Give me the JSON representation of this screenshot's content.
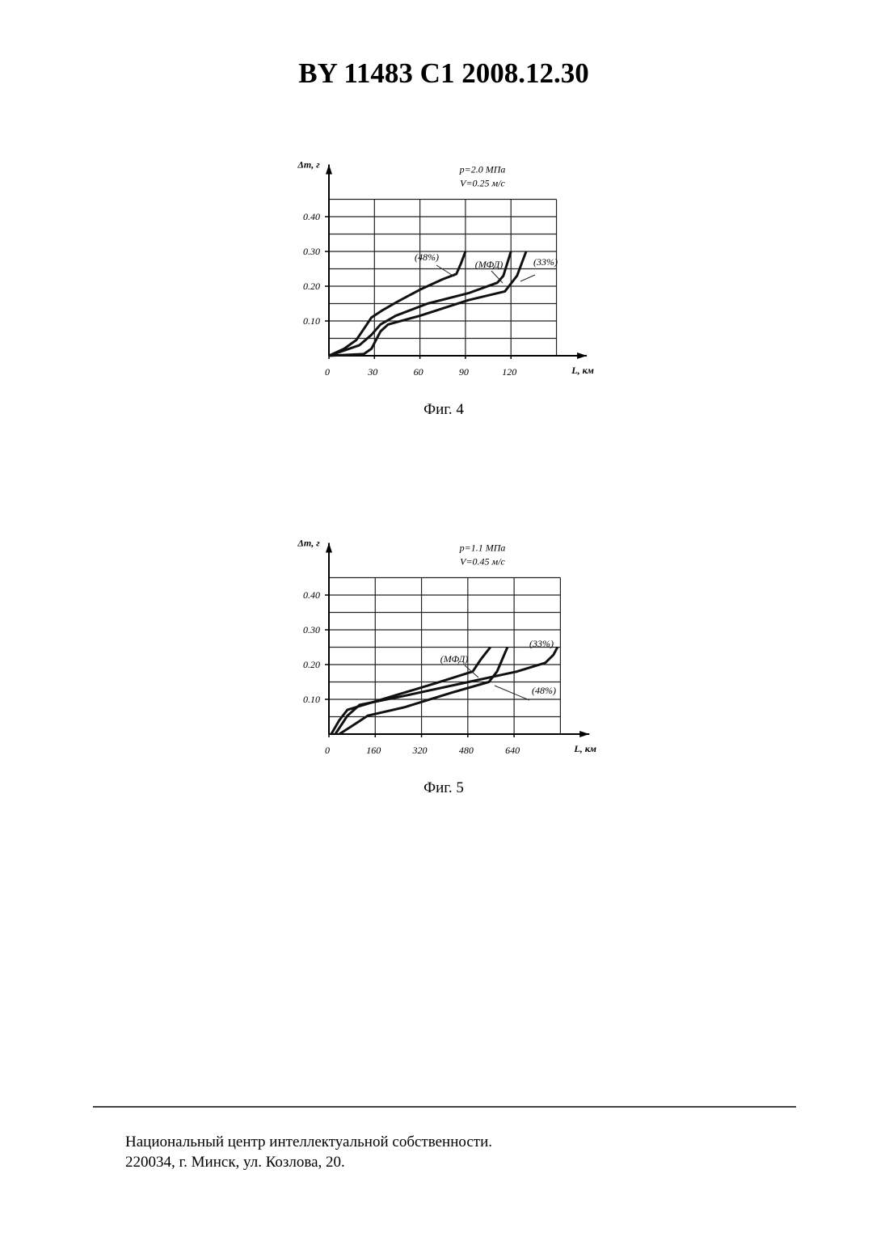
{
  "header": "BY 11483 C1 2008.12.30",
  "chart_data": [
    {
      "type": "line",
      "caption": "Фиг. 4",
      "ylabel": "Δm, г",
      "xlabel": "L, км",
      "annotations": [
        "p=2.0 МПа",
        "V=0.25 м/с"
      ],
      "xlim": [
        0,
        170
      ],
      "ylim": [
        0,
        0.55
      ],
      "xticks": [
        0,
        30,
        60,
        90,
        120
      ],
      "yticks": [
        {
          "value": 0.1,
          "label": "0.10"
        },
        {
          "value": 0.2,
          "label": "0.20"
        },
        {
          "value": 0.3,
          "label": "0.30"
        },
        {
          "value": 0.4,
          "label": "0.40"
        }
      ],
      "xgrid": [
        30,
        60,
        90,
        120,
        150
      ],
      "ygrid": [
        0.05,
        0.1,
        0.15,
        0.2,
        0.25,
        0.3,
        0.35,
        0.4,
        0.45
      ],
      "grid": true,
      "color": "#111111",
      "series": [
        {
          "name": "(48%)",
          "x": [
            0,
            10,
            18,
            25,
            28,
            35,
            45,
            60,
            75,
            84,
            87,
            90
          ],
          "values": [
            0,
            0.02,
            0.045,
            0.09,
            0.11,
            0.13,
            0.155,
            0.19,
            0.22,
            0.235,
            0.265,
            0.3
          ]
        },
        {
          "name": "(МФД)",
          "x": [
            0,
            20,
            28,
            34,
            44,
            65,
            92,
            111,
            115,
            120
          ],
          "values": [
            0,
            0.03,
            0.06,
            0.09,
            0.115,
            0.15,
            0.18,
            0.21,
            0.23,
            0.3
          ]
        },
        {
          "name": "(33%)",
          "x": [
            0,
            23,
            28,
            34,
            39,
            60,
            92,
            116,
            124,
            130
          ],
          "values": [
            0,
            0.005,
            0.02,
            0.07,
            0.09,
            0.115,
            0.16,
            0.185,
            0.23,
            0.3
          ]
        }
      ]
    },
    {
      "type": "line",
      "caption": "Фиг. 5",
      "ylabel": "Δm, г",
      "xlabel": "L, км",
      "annotations": [
        "p=1.1 МПа",
        "V=0.45 м/с"
      ],
      "xlim": [
        0,
        900
      ],
      "ylim": [
        0,
        0.55
      ],
      "xticks": [
        0,
        160,
        320,
        480,
        640
      ],
      "yticks": [
        {
          "value": 0.1,
          "label": "0.10"
        },
        {
          "value": 0.2,
          "label": "0.20"
        },
        {
          "value": 0.3,
          "label": "0.30"
        },
        {
          "value": 0.4,
          "label": "0.40"
        }
      ],
      "xgrid": [
        160,
        320,
        480,
        640,
        800
      ],
      "ygrid": [
        0.05,
        0.1,
        0.15,
        0.2,
        0.25,
        0.3,
        0.35,
        0.4,
        0.45
      ],
      "grid": true,
      "color": "#111111",
      "series": [
        {
          "name": "(МФД)",
          "x": [
            8,
            36,
            64,
            92,
            204,
            371,
            497,
            525,
            558
          ],
          "values": [
            0,
            0.04,
            0.07,
            0.077,
            0.105,
            0.147,
            0.18,
            0.215,
            0.25
          ]
        },
        {
          "name": "(33%)",
          "x": [
            22,
            64,
            106,
            260,
            483,
            650,
            748,
            776,
            790
          ],
          "values": [
            0,
            0.053,
            0.084,
            0.11,
            0.15,
            0.18,
            0.205,
            0.228,
            0.25
          ]
        },
        {
          "name": "(48%)",
          "x": [
            36,
            92,
            134,
            260,
            427,
            553,
            581,
            617
          ],
          "values": [
            0,
            0.03,
            0.053,
            0.077,
            0.12,
            0.15,
            0.18,
            0.25
          ]
        }
      ]
    }
  ],
  "footer": [
    "Национальный центр интеллектуальной собственности.",
    "220034, г. Минск, ул. Козлова, 20."
  ]
}
